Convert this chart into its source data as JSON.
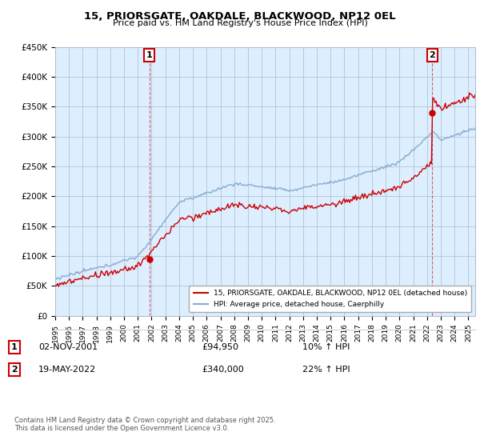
{
  "title_line1": "15, PRIORSGATE, OAKDALE, BLACKWOOD, NP12 0EL",
  "title_line2": "Price paid vs. HM Land Registry's House Price Index (HPI)",
  "ylim": [
    0,
    450000
  ],
  "yticks": [
    0,
    50000,
    100000,
    150000,
    200000,
    250000,
    300000,
    350000,
    400000,
    450000
  ],
  "ytick_labels": [
    "£0",
    "£50K",
    "£100K",
    "£150K",
    "£200K",
    "£250K",
    "£300K",
    "£350K",
    "£400K",
    "£450K"
  ],
  "xlim_start": 1995.0,
  "xlim_end": 2025.5,
  "purchase1_year": 2001.84,
  "purchase1_price": 94950,
  "purchase2_year": 2022.38,
  "purchase2_price": 340000,
  "line_color_property": "#cc0000",
  "line_color_hpi": "#88aacc",
  "vline_color": "#cc0000",
  "background_color": "#ffffff",
  "chart_bg_color": "#ddeeff",
  "grid_color": "#aabbcc",
  "legend_label_property": "15, PRIORSGATE, OAKDALE, BLACKWOOD, NP12 0EL (detached house)",
  "legend_label_hpi": "HPI: Average price, detached house, Caerphilly",
  "footer_text": "Contains HM Land Registry data © Crown copyright and database right 2025.\nThis data is licensed under the Open Government Licence v3.0.",
  "xtick_years": [
    1995,
    1996,
    1997,
    1998,
    1999,
    2000,
    2001,
    2002,
    2003,
    2004,
    2005,
    2006,
    2007,
    2008,
    2009,
    2010,
    2011,
    2012,
    2013,
    2014,
    2015,
    2016,
    2017,
    2018,
    2019,
    2020,
    2021,
    2022,
    2023,
    2024,
    2025
  ],
  "purchase1_date": "02-NOV-2001",
  "purchase1_hpi_text": "10% ↑ HPI",
  "purchase2_date": "19-MAY-2022",
  "purchase2_hpi_text": "22% ↑ HPI"
}
